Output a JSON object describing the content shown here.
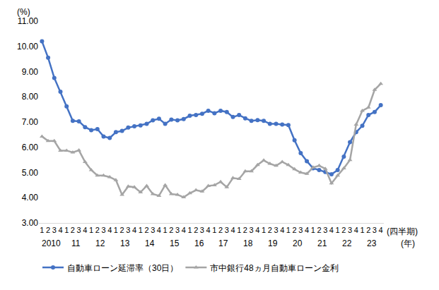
{
  "chart_data": {
    "type": "line",
    "y_label": "(%)",
    "x_label": "(四半期)",
    "x_group_label": "(年)",
    "categories": [
      "1",
      "2",
      "3",
      "4",
      "1",
      "2",
      "3",
      "4",
      "1",
      "2",
      "3",
      "4",
      "1",
      "2",
      "3",
      "4",
      "1",
      "2",
      "3",
      "4",
      "1",
      "2",
      "3",
      "4",
      "1",
      "2",
      "3",
      "4",
      "1",
      "2",
      "3",
      "4",
      "1",
      "2",
      "3",
      "4",
      "1",
      "2",
      "3",
      "4",
      "1",
      "2",
      "3",
      "4",
      "1",
      "2",
      "3",
      "4",
      "1",
      "2",
      "3",
      "4",
      "1",
      "2",
      "3",
      "4"
    ],
    "year_labels": [
      "2010",
      "11",
      "12",
      "13",
      "14",
      "15",
      "16",
      "17",
      "18",
      "19",
      "20",
      "21",
      "22",
      "23"
    ],
    "series": [
      {
        "name": "自動車ローン延滞率（30日）",
        "color": "#4472c4",
        "marker": "circle",
        "values": [
          10.2,
          9.55,
          8.75,
          8.2,
          7.62,
          7.05,
          7.03,
          6.8,
          6.68,
          6.72,
          6.43,
          6.37,
          6.6,
          6.65,
          6.78,
          6.83,
          6.87,
          6.93,
          7.07,
          7.13,
          6.93,
          7.1,
          7.07,
          7.12,
          7.25,
          7.28,
          7.33,
          7.45,
          7.35,
          7.45,
          7.4,
          7.2,
          7.28,
          7.15,
          7.05,
          7.08,
          7.05,
          6.93,
          6.93,
          6.9,
          6.88,
          6.28,
          5.77,
          5.45,
          5.17,
          5.1,
          5.02,
          4.93,
          5.1,
          5.63,
          6.2,
          6.6,
          6.85,
          7.28,
          7.4,
          7.67
        ]
      },
      {
        "name": "市中銀行48ヵ月自動車ローン金利",
        "color": "#a5a5a5",
        "marker": "triangle",
        "values": [
          6.43,
          6.25,
          6.25,
          5.87,
          5.87,
          5.8,
          5.88,
          5.42,
          5.1,
          4.88,
          4.88,
          4.82,
          4.7,
          4.12,
          4.45,
          4.42,
          4.22,
          4.47,
          4.15,
          4.08,
          4.5,
          4.15,
          4.12,
          4.02,
          4.18,
          4.3,
          4.25,
          4.47,
          4.5,
          4.63,
          4.42,
          4.78,
          4.75,
          5.05,
          5.05,
          5.3,
          5.48,
          5.35,
          5.27,
          5.42,
          5.3,
          5.13,
          5.0,
          4.95,
          5.2,
          5.27,
          5.15,
          4.57,
          4.88,
          5.17,
          5.5,
          6.9,
          7.45,
          7.58,
          8.28,
          8.52
        ]
      }
    ],
    "ylim": [
      3,
      11
    ],
    "yticks": [
      {
        "value": 3,
        "label": "3.00"
      },
      {
        "value": 4,
        "label": "4.00"
      },
      {
        "value": 5,
        "label": "5.00"
      },
      {
        "value": 6,
        "label": "6.00"
      },
      {
        "value": 7,
        "label": "7.00"
      },
      {
        "value": 8,
        "label": "8.00"
      },
      {
        "value": 9,
        "label": "9.00"
      },
      {
        "value": 10,
        "label": "10.00"
      },
      {
        "value": 11,
        "label": "11.00"
      }
    ],
    "grid": false,
    "legend": "bottom"
  }
}
